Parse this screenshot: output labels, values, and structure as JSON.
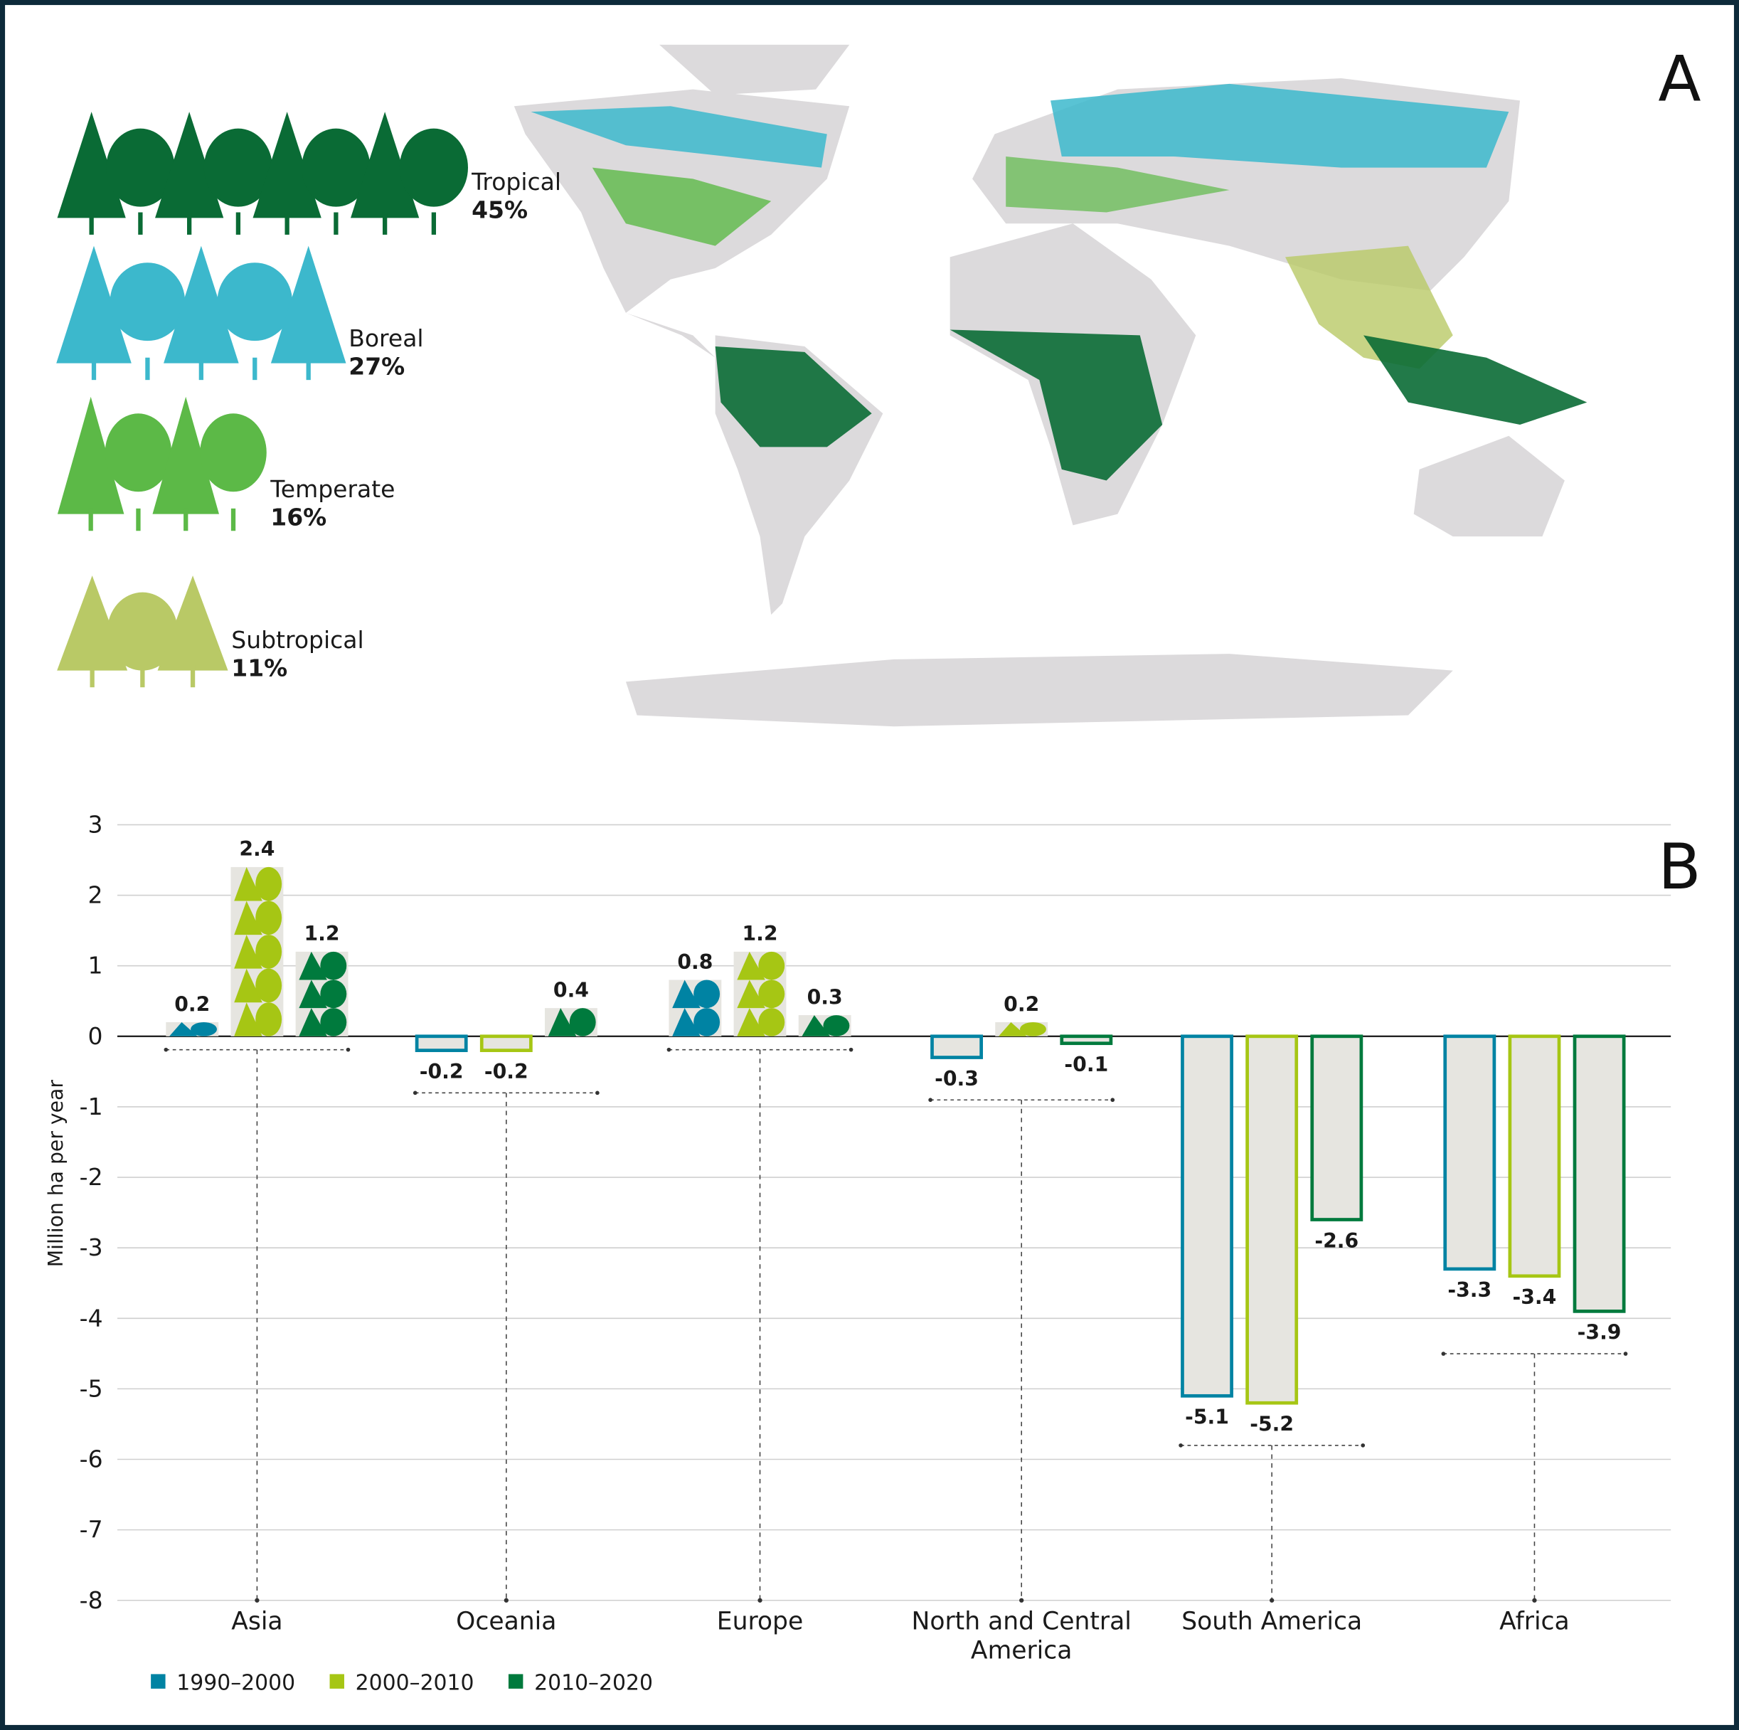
{
  "panel_a": {
    "label": "A",
    "legend": [
      {
        "name": "Tropical",
        "share": "45%",
        "color": "#0a6b35"
      },
      {
        "name": "Boreal",
        "share": "27%",
        "color": "#3cb8cc"
      },
      {
        "name": "Temperate",
        "share": "16%",
        "color": "#5cb947"
      },
      {
        "name": "Subtropical",
        "share": "11%",
        "color": "#b9c966"
      }
    ],
    "land_color": "#dcdadc"
  },
  "chart_data": {
    "type": "bar",
    "panel_label": "B",
    "ylabel": "Million ha per year",
    "ylim": [
      -8,
      3
    ],
    "yticks": [
      "3",
      "2",
      "1",
      "0",
      "-1",
      "-2",
      "-3",
      "-4",
      "-5",
      "-6",
      "-7",
      "-8"
    ],
    "grid": true,
    "categories": [
      "Asia",
      "Oceania",
      "Europe",
      "North and Central America",
      "South America",
      "Africa"
    ],
    "category_lines": [
      [
        "Asia"
      ],
      [
        "Oceania"
      ],
      [
        "Europe"
      ],
      [
        "North and Central",
        "America"
      ],
      [
        "South America"
      ],
      [
        "Africa"
      ]
    ],
    "series": [
      {
        "name": "1990–2000",
        "color": "#0083a3",
        "values": [
          0.2,
          -0.2,
          0.8,
          -0.3,
          -5.1,
          -3.3
        ],
        "labels": [
          "0.2",
          "-0.2",
          "0.8",
          "-0.3",
          "-5.1",
          "-3.3"
        ]
      },
      {
        "name": "2000–2010",
        "color": "#a6c614",
        "values": [
          2.4,
          -0.2,
          1.2,
          0.2,
          -5.2,
          -3.4
        ],
        "labels": [
          "2.4",
          "-0.2",
          "1.2",
          "0.2",
          "-5.2",
          "-3.4"
        ]
      },
      {
        "name": "2010–2020",
        "color": "#007a3d",
        "values": [
          1.2,
          0.4,
          0.3,
          -0.1,
          -2.6,
          -3.9
        ],
        "labels": [
          "1.2",
          "0.4",
          "0.3",
          "-0.1",
          "-2.6",
          "-3.9"
        ]
      }
    ],
    "legend_position": "bottom-left"
  }
}
